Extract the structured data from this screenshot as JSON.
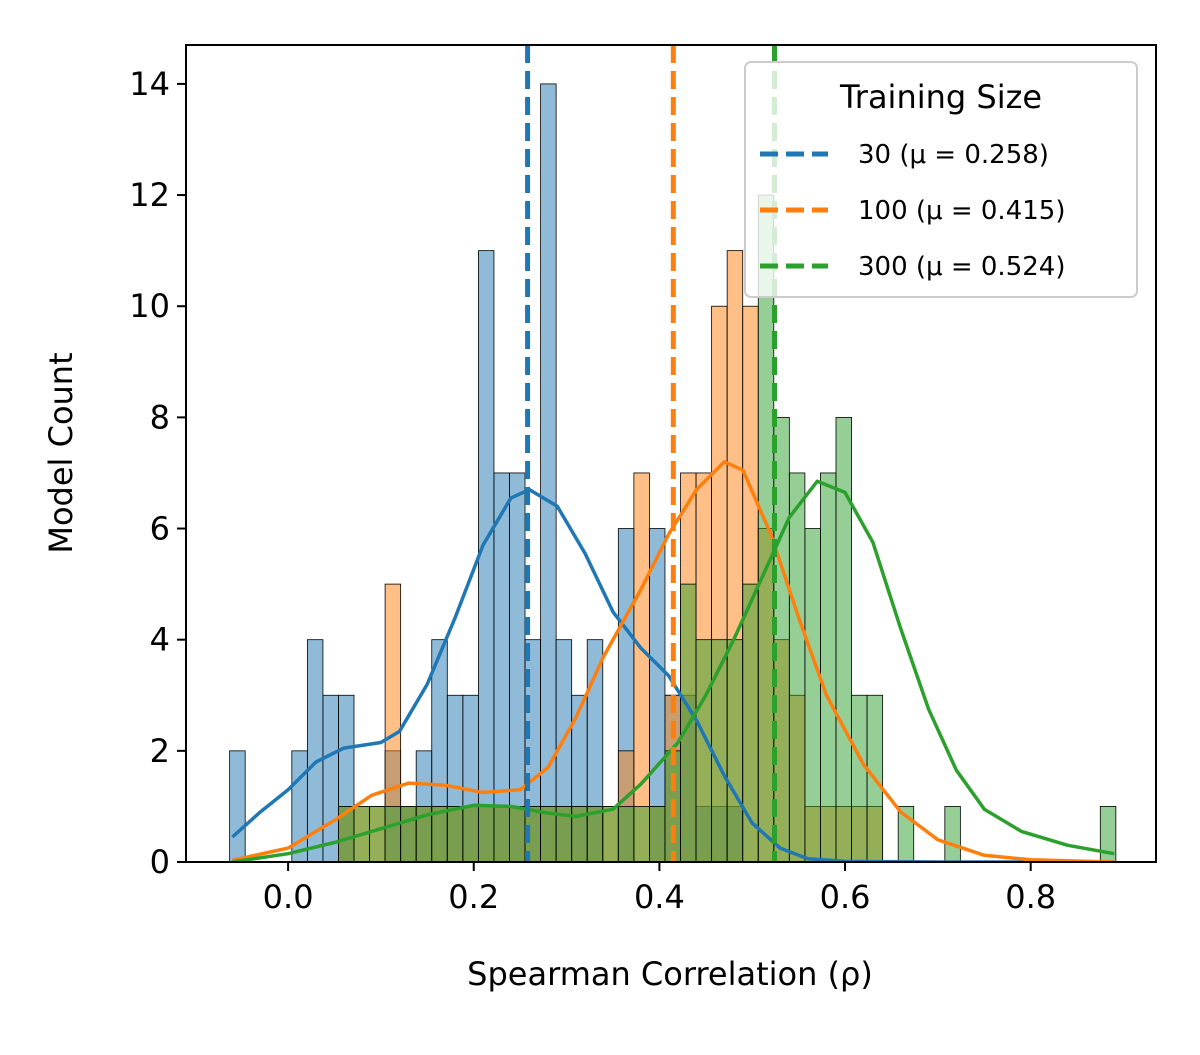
{
  "chart_data": {
    "type": "histogram",
    "xlabel": "Spearman Correlation (ρ)",
    "ylabel": "Model Count",
    "xlim": [
      -0.11,
      0.935
    ],
    "ylim": [
      0,
      14.7
    ],
    "xticks": [
      0.0,
      0.2,
      0.4,
      0.6,
      0.8
    ],
    "xtick_labels": [
      "0.0",
      "0.2",
      "0.4",
      "0.6",
      "0.8"
    ],
    "yticks": [
      0,
      2,
      4,
      6,
      8,
      10,
      12,
      14
    ],
    "ytick_labels": [
      "0",
      "2",
      "4",
      "6",
      "8",
      "10",
      "12",
      "14"
    ],
    "bin_start": -0.063,
    "bin_width": 0.01675,
    "legend": {
      "title": "Training Size",
      "placement": "upper right",
      "entries": [
        "30 (μ = 0.258)",
        "100 (μ = 0.415)",
        "300 (μ = 0.524)"
      ]
    },
    "series": [
      {
        "name": "30",
        "color": "#1f77b4",
        "mean": 0.258,
        "counts": [
          2,
          0,
          0,
          0,
          2,
          4,
          3,
          3,
          0,
          0,
          2,
          1,
          2,
          4,
          3,
          3,
          11,
          7,
          7,
          4,
          14,
          4,
          3,
          4,
          0,
          6,
          0,
          6,
          3,
          3,
          1,
          1,
          1,
          0,
          0,
          0,
          0,
          0,
          0,
          0,
          0,
          0,
          0,
          0,
          0,
          0,
          0,
          0,
          0,
          0,
          0,
          0,
          0,
          0,
          0,
          0,
          0
        ],
        "kde": [
          [
            -0.06,
            0.45
          ],
          [
            -0.03,
            0.9
          ],
          [
            0.0,
            1.3
          ],
          [
            0.03,
            1.8
          ],
          [
            0.06,
            2.05
          ],
          [
            0.1,
            2.15
          ],
          [
            0.12,
            2.35
          ],
          [
            0.15,
            3.2
          ],
          [
            0.18,
            4.4
          ],
          [
            0.21,
            5.7
          ],
          [
            0.24,
            6.55
          ],
          [
            0.26,
            6.7
          ],
          [
            0.29,
            6.4
          ],
          [
            0.32,
            5.55
          ],
          [
            0.35,
            4.5
          ],
          [
            0.38,
            3.85
          ],
          [
            0.41,
            3.35
          ],
          [
            0.44,
            2.55
          ],
          [
            0.47,
            1.55
          ],
          [
            0.5,
            0.7
          ],
          [
            0.53,
            0.25
          ],
          [
            0.56,
            0.06
          ],
          [
            0.6,
            0.01
          ],
          [
            0.7,
            0.0
          ],
          [
            0.89,
            0.0
          ]
        ]
      },
      {
        "name": "100",
        "color": "#ff7f0e",
        "mean": 0.415,
        "counts": [
          0,
          0,
          0,
          0,
          0,
          0,
          0,
          1,
          1,
          1,
          5,
          1,
          1,
          1,
          1,
          1,
          1,
          1,
          1,
          1,
          1,
          1,
          1,
          1,
          1,
          2,
          7,
          1,
          3,
          7,
          7,
          10,
          11,
          10,
          6,
          4,
          3,
          1,
          1,
          1,
          1,
          1,
          0,
          0,
          0,
          0,
          0,
          0,
          0,
          0,
          0,
          0,
          0,
          0,
          0,
          0,
          0
        ],
        "kde": [
          [
            -0.06,
            0.03
          ],
          [
            0.0,
            0.25
          ],
          [
            0.05,
            0.75
          ],
          [
            0.09,
            1.2
          ],
          [
            0.13,
            1.42
          ],
          [
            0.17,
            1.38
          ],
          [
            0.21,
            1.25
          ],
          [
            0.25,
            1.3
          ],
          [
            0.28,
            1.7
          ],
          [
            0.31,
            2.6
          ],
          [
            0.34,
            3.7
          ],
          [
            0.38,
            4.9
          ],
          [
            0.41,
            5.9
          ],
          [
            0.44,
            6.7
          ],
          [
            0.47,
            7.2
          ],
          [
            0.49,
            7.05
          ],
          [
            0.52,
            5.9
          ],
          [
            0.55,
            4.4
          ],
          [
            0.58,
            3.0
          ],
          [
            0.62,
            1.75
          ],
          [
            0.66,
            0.9
          ],
          [
            0.7,
            0.4
          ],
          [
            0.75,
            0.12
          ],
          [
            0.8,
            0.04
          ],
          [
            0.89,
            0.0
          ]
        ]
      },
      {
        "name": "300",
        "color": "#2ca02c",
        "mean": 0.524,
        "counts": [
          0,
          0,
          0,
          0,
          0,
          0,
          0,
          1,
          1,
          1,
          1,
          1,
          1,
          1,
          1,
          1,
          1,
          1,
          1,
          1,
          1,
          1,
          1,
          1,
          1,
          1,
          1,
          1,
          2,
          5,
          4,
          4,
          4,
          5,
          12,
          8,
          7,
          6,
          7,
          8,
          3,
          3,
          0,
          1,
          0,
          0,
          1,
          0,
          0,
          0,
          0,
          0,
          0,
          0,
          0,
          0,
          1
        ],
        "kde": [
          [
            -0.06,
            0.0
          ],
          [
            0.0,
            0.15
          ],
          [
            0.05,
            0.35
          ],
          [
            0.1,
            0.6
          ],
          [
            0.15,
            0.85
          ],
          [
            0.2,
            1.02
          ],
          [
            0.24,
            1.0
          ],
          [
            0.28,
            0.88
          ],
          [
            0.31,
            0.82
          ],
          [
            0.35,
            0.95
          ],
          [
            0.38,
            1.4
          ],
          [
            0.42,
            2.15
          ],
          [
            0.45,
            3.0
          ],
          [
            0.48,
            4.0
          ],
          [
            0.51,
            5.1
          ],
          [
            0.54,
            6.2
          ],
          [
            0.57,
            6.85
          ],
          [
            0.6,
            6.65
          ],
          [
            0.63,
            5.75
          ],
          [
            0.66,
            4.2
          ],
          [
            0.69,
            2.75
          ],
          [
            0.72,
            1.65
          ],
          [
            0.75,
            0.95
          ],
          [
            0.79,
            0.55
          ],
          [
            0.84,
            0.3
          ],
          [
            0.89,
            0.15
          ]
        ]
      }
    ]
  }
}
